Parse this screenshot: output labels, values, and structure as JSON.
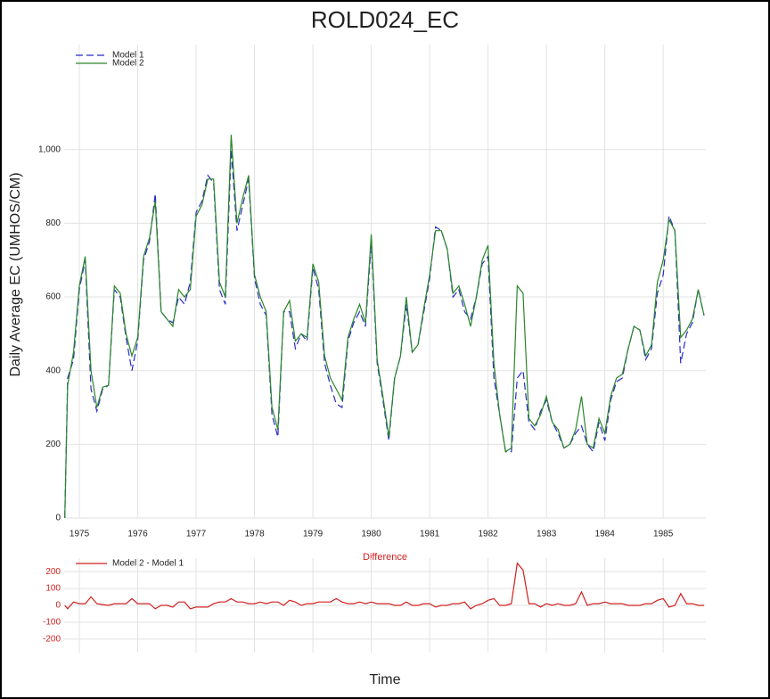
{
  "title": "ROLD024_EC",
  "x_label": "Time",
  "chart_data": [
    {
      "type": "line",
      "y_label": "Daily Average EC (UMHOS/CM)",
      "legend": "top-left",
      "grid": true,
      "xlim": [
        1974.74,
        1985.73
      ],
      "xticks": [
        1975,
        1976,
        1977,
        1978,
        1979,
        1980,
        1981,
        1982,
        1983,
        1984,
        1985
      ],
      "ylim": [
        0,
        1285
      ],
      "yticks": [
        0,
        200,
        400,
        600,
        800,
        {
          "value": 1000,
          "label": "1,000"
        }
      ],
      "x": [
        1974.75,
        1974.8,
        1974.9,
        1975.0,
        1975.1,
        1975.2,
        1975.3,
        1975.4,
        1975.5,
        1975.6,
        1975.7,
        1975.8,
        1975.9,
        1976.0,
        1976.1,
        1976.2,
        1976.3,
        1976.4,
        1976.5,
        1976.6,
        1976.7,
        1976.8,
        1976.9,
        1977.0,
        1977.1,
        1977.2,
        1977.3,
        1977.4,
        1977.5,
        1977.6,
        1977.7,
        1977.8,
        1977.9,
        1978.0,
        1978.1,
        1978.2,
        1978.3,
        1978.4,
        1978.5,
        1978.6,
        1978.7,
        1978.8,
        1978.9,
        1979.0,
        1979.1,
        1979.2,
        1979.3,
        1979.4,
        1979.5,
        1979.6,
        1979.7,
        1979.8,
        1979.9,
        1980.0,
        1980.1,
        1980.2,
        1980.3,
        1980.4,
        1980.5,
        1980.6,
        1980.7,
        1980.8,
        1980.9,
        1981.0,
        1981.1,
        1981.2,
        1981.3,
        1981.4,
        1981.5,
        1981.6,
        1981.7,
        1981.8,
        1981.9,
        1982.0,
        1982.1,
        1982.2,
        1982.3,
        1982.4,
        1982.5,
        1982.6,
        1982.7,
        1982.8,
        1982.9,
        1983.0,
        1983.1,
        1983.2,
        1983.3,
        1983.4,
        1983.5,
        1983.6,
        1983.7,
        1983.8,
        1983.9,
        1984.0,
        1984.1,
        1984.2,
        1984.3,
        1984.4,
        1984.5,
        1984.6,
        1984.7,
        1984.8,
        1984.9,
        1985.0,
        1985.1,
        1985.2,
        1985.3,
        1985.4,
        1985.5,
        1985.6,
        1985.7
      ],
      "series": [
        {
          "name": "Model 1",
          "color": "#2b2bc8",
          "dash": true,
          "values": [
            0,
            380,
            430,
            620,
            700,
            350,
            290,
            350,
            360,
            620,
            600,
            490,
            400,
            480,
            700,
            750,
            880,
            560,
            540,
            530,
            600,
            580,
            640,
            830,
            860,
            930,
            910,
            620,
            580,
            1000,
            780,
            850,
            920,
            650,
            580,
            550,
            280,
            220,
            560,
            560,
            460,
            500,
            480,
            680,
            620,
            420,
            360,
            310,
            300,
            480,
            530,
            560,
            520,
            750,
            420,
            320,
            210,
            380,
            440,
            580,
            450,
            470,
            560,
            650,
            790,
            780,
            730,
            600,
            620,
            560,
            540,
            600,
            690,
            710,
            380,
            280,
            180,
            180,
            380,
            400,
            260,
            240,
            290,
            320,
            260,
            230,
            190,
            200,
            230,
            250,
            200,
            180,
            260,
            210,
            320,
            370,
            380,
            460,
            520,
            510,
            430,
            460,
            610,
            660,
            820,
            780,
            420,
            500,
            530,
            620,
            550
          ]
        },
        {
          "name": "Model 2",
          "color": "#2a862a",
          "dash": false,
          "values": [
            0,
            360,
            450,
            630,
            710,
            400,
            300,
            355,
            360,
            630,
            610,
            500,
            440,
            490,
            710,
            760,
            860,
            560,
            540,
            520,
            620,
            600,
            620,
            820,
            850,
            920,
            920,
            640,
            600,
            1040,
            800,
            870,
            930,
            660,
            600,
            560,
            300,
            240,
            560,
            590,
            480,
            500,
            490,
            690,
            640,
            440,
            380,
            350,
            320,
            490,
            540,
            580,
            530,
            770,
            430,
            330,
            220,
            380,
            440,
            600,
            450,
            470,
            570,
            660,
            780,
            780,
            730,
            610,
            630,
            580,
            520,
            600,
            700,
            740,
            420,
            280,
            180,
            190,
            630,
            610,
            270,
            250,
            280,
            330,
            260,
            240,
            190,
            200,
            240,
            330,
            200,
            190,
            270,
            230,
            330,
            380,
            390,
            460,
            520,
            510,
            440,
            470,
            640,
            700,
            810,
            780,
            490,
            510,
            540,
            620,
            550
          ]
        }
      ]
    },
    {
      "type": "line",
      "title": "Difference",
      "legend": "top-left",
      "grid": true,
      "xlim": [
        1974.74,
        1985.73
      ],
      "ylim": [
        -280,
        280
      ],
      "yticks": [
        200,
        100,
        0,
        -100,
        -200
      ],
      "x": [
        1974.75,
        1974.8,
        1974.9,
        1975.0,
        1975.1,
        1975.2,
        1975.3,
        1975.4,
        1975.5,
        1975.6,
        1975.7,
        1975.8,
        1975.9,
        1976.0,
        1976.1,
        1976.2,
        1976.3,
        1976.4,
        1976.5,
        1976.6,
        1976.7,
        1976.8,
        1976.9,
        1977.0,
        1977.1,
        1977.2,
        1977.3,
        1977.4,
        1977.5,
        1977.6,
        1977.7,
        1977.8,
        1977.9,
        1978.0,
        1978.1,
        1978.2,
        1978.3,
        1978.4,
        1978.5,
        1978.6,
        1978.7,
        1978.8,
        1978.9,
        1979.0,
        1979.1,
        1979.2,
        1979.3,
        1979.4,
        1979.5,
        1979.6,
        1979.7,
        1979.8,
        1979.9,
        1980.0,
        1980.1,
        1980.2,
        1980.3,
        1980.4,
        1980.5,
        1980.6,
        1980.7,
        1980.8,
        1980.9,
        1981.0,
        1981.1,
        1981.2,
        1981.3,
        1981.4,
        1981.5,
        1981.6,
        1981.7,
        1981.8,
        1981.9,
        1982.0,
        1982.1,
        1982.2,
        1982.3,
        1982.4,
        1982.5,
        1982.6,
        1982.7,
        1982.8,
        1982.9,
        1983.0,
        1983.1,
        1983.2,
        1983.3,
        1983.4,
        1983.5,
        1983.6,
        1983.7,
        1983.8,
        1983.9,
        1984.0,
        1984.1,
        1984.2,
        1984.3,
        1984.4,
        1984.5,
        1984.6,
        1984.7,
        1984.8,
        1984.9,
        1985.0,
        1985.1,
        1985.2,
        1985.3,
        1985.4,
        1985.5,
        1985.6,
        1985.7
      ],
      "series": [
        {
          "name": "Model 2 - Model 1",
          "color": "#d02020",
          "dash": false,
          "values": [
            0,
            -20,
            20,
            10,
            10,
            50,
            10,
            5,
            0,
            10,
            10,
            10,
            40,
            10,
            10,
            10,
            -20,
            0,
            0,
            -10,
            20,
            20,
            -20,
            -10,
            -10,
            -10,
            10,
            20,
            20,
            40,
            20,
            20,
            10,
            10,
            20,
            10,
            20,
            20,
            0,
            30,
            20,
            0,
            10,
            10,
            20,
            20,
            20,
            40,
            20,
            10,
            10,
            20,
            10,
            20,
            10,
            10,
            10,
            0,
            0,
            20,
            0,
            0,
            10,
            10,
            -10,
            0,
            0,
            10,
            10,
            20,
            -20,
            0,
            10,
            30,
            40,
            0,
            0,
            10,
            250,
            210,
            10,
            10,
            -10,
            10,
            0,
            10,
            0,
            0,
            10,
            80,
            0,
            10,
            10,
            20,
            10,
            10,
            10,
            0,
            0,
            0,
            10,
            10,
            30,
            40,
            -10,
            0,
            70,
            10,
            10,
            0,
            0
          ]
        }
      ]
    }
  ]
}
